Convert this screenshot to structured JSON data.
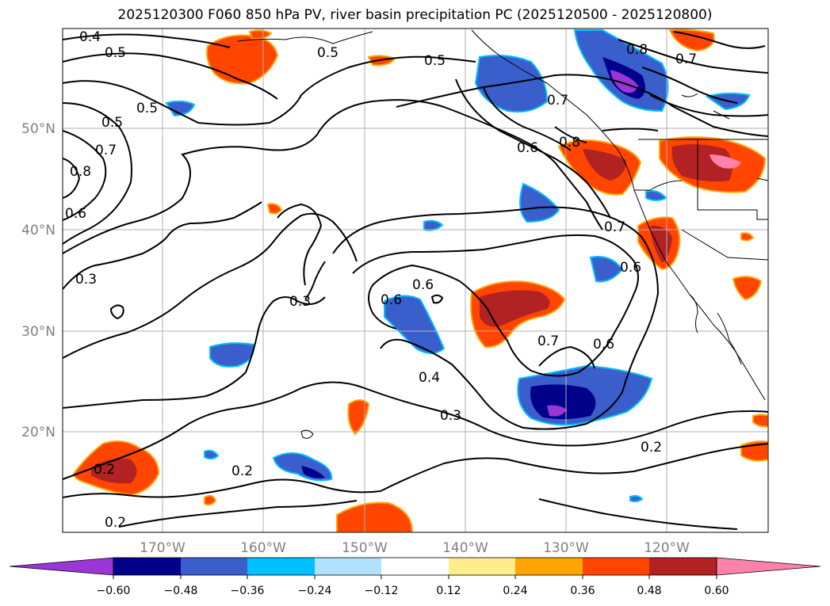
{
  "title": "2025120300 F060 850 hPa PV, river basin precipitation PC (2025120500 - 2025120800)",
  "lat_labels": [
    "50°N",
    "40°N",
    "30°N",
    "20°N"
  ],
  "lon_labels": [
    "170°W",
    "160°W",
    "150°W",
    "140°W",
    "130°W",
    "120°W"
  ],
  "colorbar": {
    "colors": [
      "#9a35d6",
      "#00008b",
      "#3a5fcd",
      "#00bfff",
      "#b0e2ff",
      "#ffffff",
      "#ffec8b",
      "#ffa500",
      "#ff4500",
      "#b22222",
      "#ff82ab"
    ],
    "labels": [
      "−0.60",
      "−0.48",
      "−0.36",
      "−0.24",
      "−0.12",
      "0.12",
      "0.24",
      "0.36",
      "0.48",
      "0.60"
    ]
  },
  "contour_labels": [
    "0.4",
    "0.5",
    "0.5",
    "0.5",
    "0.5",
    "0.8",
    "0.7",
    "0.6",
    "0.7",
    "0.8",
    "0.6",
    "0.5",
    "0.7",
    "0.6",
    "0.8",
    "0.7",
    "0.6",
    "0.7",
    "0.6",
    "0.3",
    "0.3",
    "0.6",
    "0.4",
    "0.3",
    "0.2",
    "0.2",
    "0.2",
    "0.2"
  ]
}
